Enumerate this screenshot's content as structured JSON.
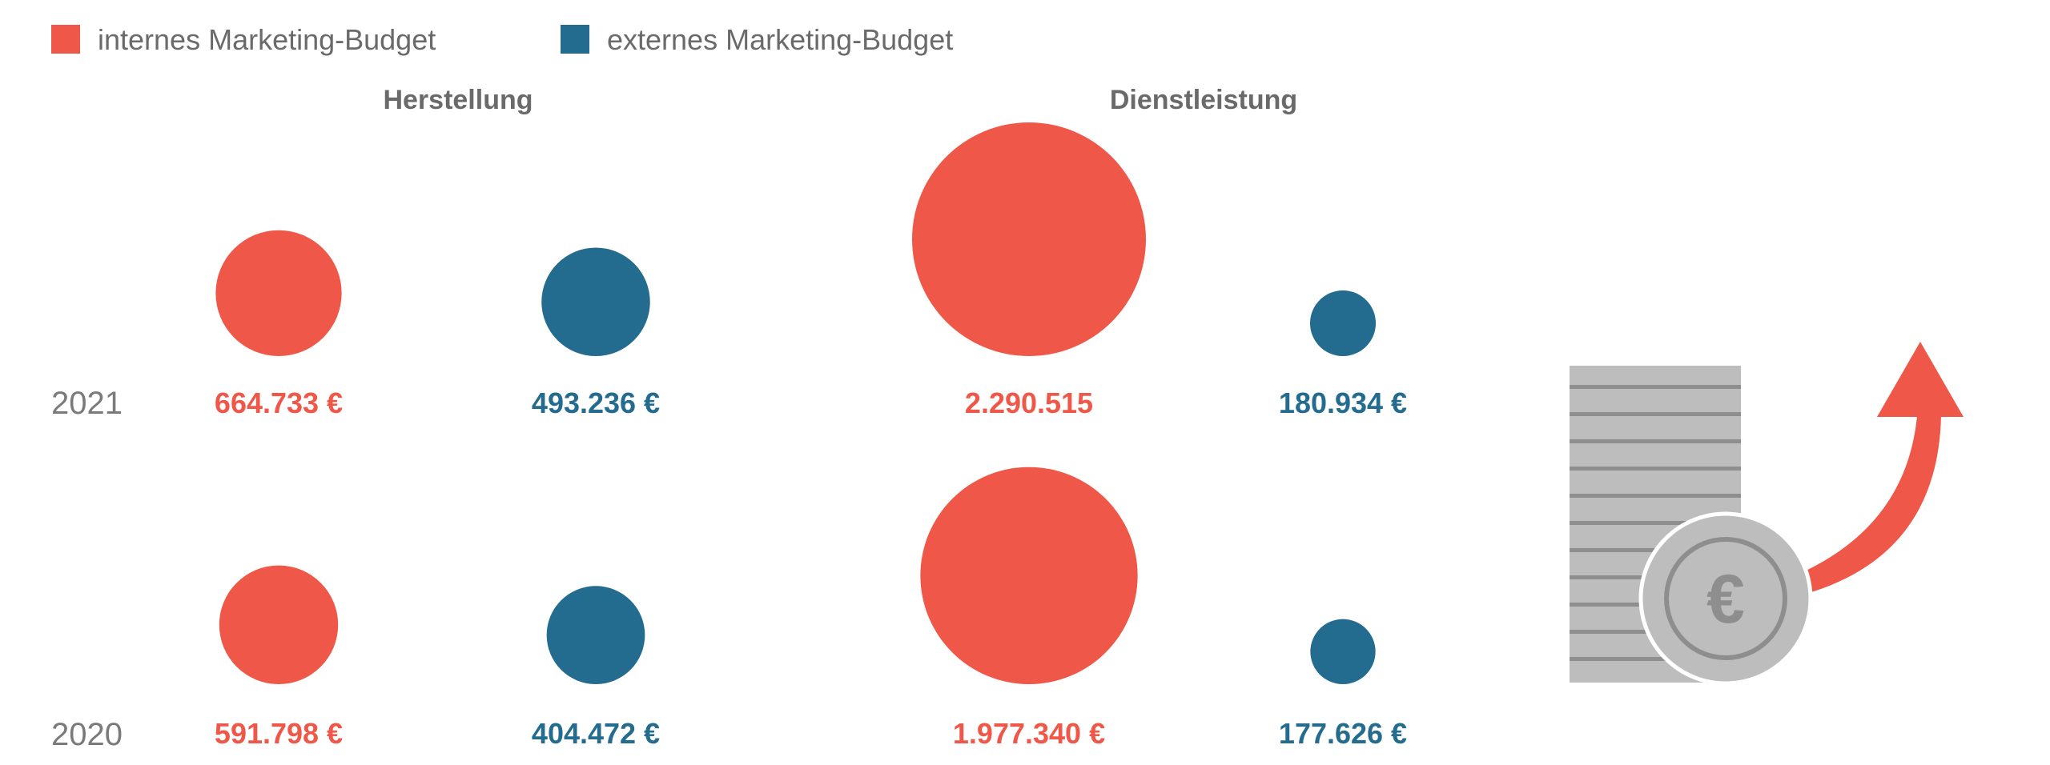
{
  "colors": {
    "intern": "#ef5848",
    "extern": "#246c8f",
    "text_gray": "#6a6a6a",
    "coin_gray": "#bdbdbd",
    "coin_stripe": "#8e8e8e"
  },
  "chart_data": {
    "type": "bubble",
    "legend": [
      {
        "key": "intern",
        "label": "internes Marketing-Budget"
      },
      {
        "key": "extern",
        "label": "externes Marketing-Budget"
      }
    ],
    "groups": [
      "Herstellung",
      "Dienstleistung"
    ],
    "years": [
      "2021",
      "2020"
    ],
    "series": [
      {
        "key": "intern",
        "group": "Herstellung",
        "values": {
          "2021": 664733,
          "2020": 591798
        },
        "labels": {
          "2021": "664.733 €",
          "2020": "591.798 €"
        }
      },
      {
        "key": "extern",
        "group": "Herstellung",
        "values": {
          "2021": 493236,
          "2020": 404472
        },
        "labels": {
          "2021": "493.236 €",
          "2020": "404.472 €"
        }
      },
      {
        "key": "intern",
        "group": "Dienstleistung",
        "values": {
          "2021": 2290515,
          "2020": 1977340
        },
        "labels": {
          "2021": "2.290.515",
          "2020": "1.977.340 €"
        }
      },
      {
        "key": "extern",
        "group": "Dienstleistung",
        "values": {
          "2021": 180934,
          "2020": 177626
        },
        "labels": {
          "2021": "180.934 €",
          "2020": "177.626 €"
        }
      }
    ]
  },
  "illustration": {
    "icon": "euro-coin-stack-growth-icon",
    "coin_symbol": "€"
  }
}
